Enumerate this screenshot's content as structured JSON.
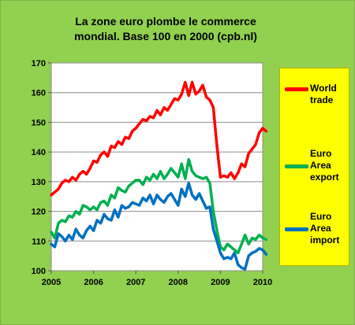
{
  "title_line1": "La zone euro plombe le commerce",
  "title_line2": "mondial. Base 100 en 2000 (cpb.nl)",
  "colors": {
    "background": "#92d050",
    "plot_area": "#ffffff",
    "legend_bg": "#ffff00"
  },
  "chart_data": {
    "type": "line",
    "title": "La zone euro plombe le commerce mondial. Base 100 en 2000 (cpb.nl)",
    "xlim": [
      2005,
      2010
    ],
    "ylim": [
      100,
      170
    ],
    "x_ticks": [
      "2005",
      "2006",
      "2007",
      "2008",
      "2009",
      "2010"
    ],
    "y_ticks": [
      "100",
      "110",
      "120",
      "130",
      "140",
      "150",
      "160",
      "170"
    ],
    "grid": true,
    "legend_position": "right",
    "x": [
      2005.0,
      2005.083,
      2005.167,
      2005.25,
      2005.333,
      2005.417,
      2005.5,
      2005.583,
      2005.667,
      2005.75,
      2005.833,
      2005.917,
      2006.0,
      2006.083,
      2006.167,
      2006.25,
      2006.333,
      2006.417,
      2006.5,
      2006.583,
      2006.667,
      2006.75,
      2006.833,
      2006.917,
      2007.0,
      2007.083,
      2007.167,
      2007.25,
      2007.333,
      2007.417,
      2007.5,
      2007.583,
      2007.667,
      2007.75,
      2007.833,
      2007.917,
      2008.0,
      2008.083,
      2008.167,
      2008.25,
      2008.333,
      2008.417,
      2008.5,
      2008.583,
      2008.667,
      2008.75,
      2008.833,
      2008.917,
      2009.0,
      2009.083,
      2009.167,
      2009.25,
      2009.333,
      2009.417,
      2009.5,
      2009.583,
      2009.667,
      2009.75,
      2009.833,
      2009.917,
      2010.0,
      2010.083
    ],
    "series": [
      {
        "name": "World trade",
        "color": "#ff0000",
        "values": [
          125.5,
          126.5,
          127.5,
          129.5,
          130.5,
          130,
          131.5,
          130.5,
          132.5,
          133.5,
          132.5,
          134.5,
          137,
          136.5,
          139,
          140,
          138.5,
          142,
          141.5,
          143.5,
          142.5,
          145,
          144.5,
          147,
          148,
          149.5,
          151,
          150.5,
          152,
          151.5,
          154,
          152.5,
          155,
          154,
          156,
          158,
          157.5,
          159.5,
          163.5,
          159,
          163.5,
          159.5,
          160.5,
          162.5,
          158.5,
          157.5,
          155,
          142,
          131.5,
          132,
          131.5,
          133,
          131,
          133,
          136,
          135,
          139.5,
          141,
          142.5,
          146.5,
          148,
          147
        ]
      },
      {
        "name": "Euro Area export",
        "color": "#00b050",
        "values": [
          113,
          111,
          116,
          117,
          116.5,
          118.5,
          118,
          120,
          119,
          122,
          121.5,
          120.5,
          121.5,
          120.5,
          123,
          123.5,
          122,
          125.5,
          124.5,
          128,
          127,
          126.5,
          128.5,
          129.5,
          130.5,
          130.5,
          129,
          131.5,
          130.5,
          132.5,
          131,
          133.5,
          131,
          132.5,
          134.5,
          133,
          131.5,
          136,
          131,
          137.5,
          133.5,
          132,
          131.5,
          131,
          131.5,
          129.5,
          120,
          113.5,
          108,
          107,
          109,
          108,
          107,
          106,
          109,
          112,
          109,
          111,
          110.5,
          112,
          111,
          110.5
        ]
      },
      {
        "name": "Euro Area import",
        "color": "#0070c0",
        "values": [
          109,
          108,
          112.5,
          111.5,
          110,
          112,
          110.5,
          114,
          112,
          111,
          113.5,
          115,
          113.5,
          117,
          116,
          119,
          117.5,
          117,
          120.5,
          118,
          122,
          121,
          121.5,
          123,
          122.5,
          122,
          124.5,
          123.5,
          125.5,
          122.5,
          125.5,
          124,
          123,
          125,
          126,
          124,
          122,
          127.5,
          125,
          129.5,
          125.5,
          124,
          126,
          123.5,
          121,
          121.5,
          114,
          110,
          106,
          104,
          104.5,
          104,
          106,
          102,
          101,
          100.5,
          105,
          106,
          106.5,
          107.5,
          107,
          105.5
        ]
      }
    ]
  }
}
